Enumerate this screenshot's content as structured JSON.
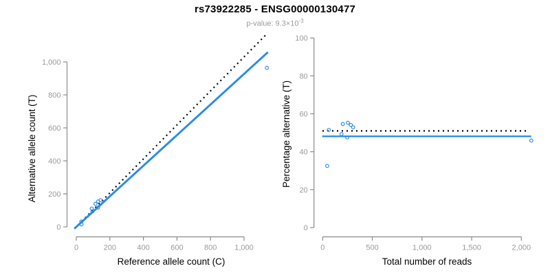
{
  "header": {
    "title": "rs73922285 - ENSG00000130477",
    "subtitle_base": "p-value: 9.3×10",
    "subtitle_exponent": "-3"
  },
  "colors": {
    "accent_blue": "#2b8ce8",
    "dotted_black": "#000000",
    "axis_gray": "#8a8a8a",
    "tick_label_gray": "#999999",
    "axis_title_black": "#000000"
  },
  "chart_data": [
    {
      "id": "allele-counts",
      "type": "scatter",
      "xlabel": "Reference allele count (C)",
      "ylabel": "Alternative allele count (T)",
      "xlim": [
        0,
        1000
      ],
      "ylim": [
        0,
        1000
      ],
      "xticks": [
        0,
        200,
        400,
        600,
        800,
        1000
      ],
      "yticks": [
        0,
        200,
        400,
        600,
        800,
        1000
      ],
      "xtick_labels": [
        "0",
        "200",
        "400",
        "600",
        "800",
        "1,000"
      ],
      "ytick_labels": [
        "0",
        "200",
        "400",
        "600",
        "800",
        "1,000"
      ],
      "grid": false,
      "points": [
        [
          31,
          15
        ],
        [
          30,
          32
        ],
        [
          96,
          94
        ],
        [
          92,
          111
        ],
        [
          130,
          117
        ],
        [
          114,
          140
        ],
        [
          130,
          154
        ],
        [
          145,
          162
        ],
        [
          1136,
          964
        ]
      ],
      "lines": [
        {
          "name": "expected-identity",
          "style": "dotted",
          "color": "#000000",
          "slope": 1.03,
          "intercept": 0,
          "x_range": [
            -8,
            1128
          ]
        },
        {
          "name": "fit",
          "style": "solid",
          "color": "#2b8ce8",
          "slope": 0.927,
          "intercept": 0,
          "x_range": [
            -12,
            1142
          ]
        }
      ]
    },
    {
      "id": "percentage-vs-reads",
      "type": "scatter",
      "xlabel": "Total number of reads",
      "ylabel": "Percentage alternative (T)",
      "xlim": [
        0,
        2000
      ],
      "ylim": [
        0,
        100
      ],
      "xticks": [
        0,
        500,
        1000,
        1500,
        2000
      ],
      "yticks": [
        0,
        20,
        40,
        60,
        80,
        100
      ],
      "xtick_labels": [
        "0",
        "500",
        "1,000",
        "1,500",
        "2,000"
      ],
      "ytick_labels": [
        "0",
        "20",
        "40",
        "60",
        "80",
        "100"
      ],
      "grid": false,
      "points": [
        [
          46,
          32.5
        ],
        [
          62,
          51.5
        ],
        [
          190,
          49.3
        ],
        [
          203,
          54.6
        ],
        [
          247,
          47.5
        ],
        [
          254,
          55.3
        ],
        [
          284,
          54.1
        ],
        [
          307,
          52.9
        ],
        [
          2100,
          45.9
        ]
      ],
      "lines": [
        {
          "name": "expected",
          "style": "dotted",
          "color": "#000000",
          "slope": 0,
          "intercept": 51.0,
          "x_range": [
            -2,
            2058
          ]
        },
        {
          "name": "fit",
          "style": "solid",
          "color": "#2b8ce8",
          "slope": 0,
          "intercept": 48.1,
          "x_range": [
            -5,
            2100
          ]
        }
      ]
    }
  ]
}
